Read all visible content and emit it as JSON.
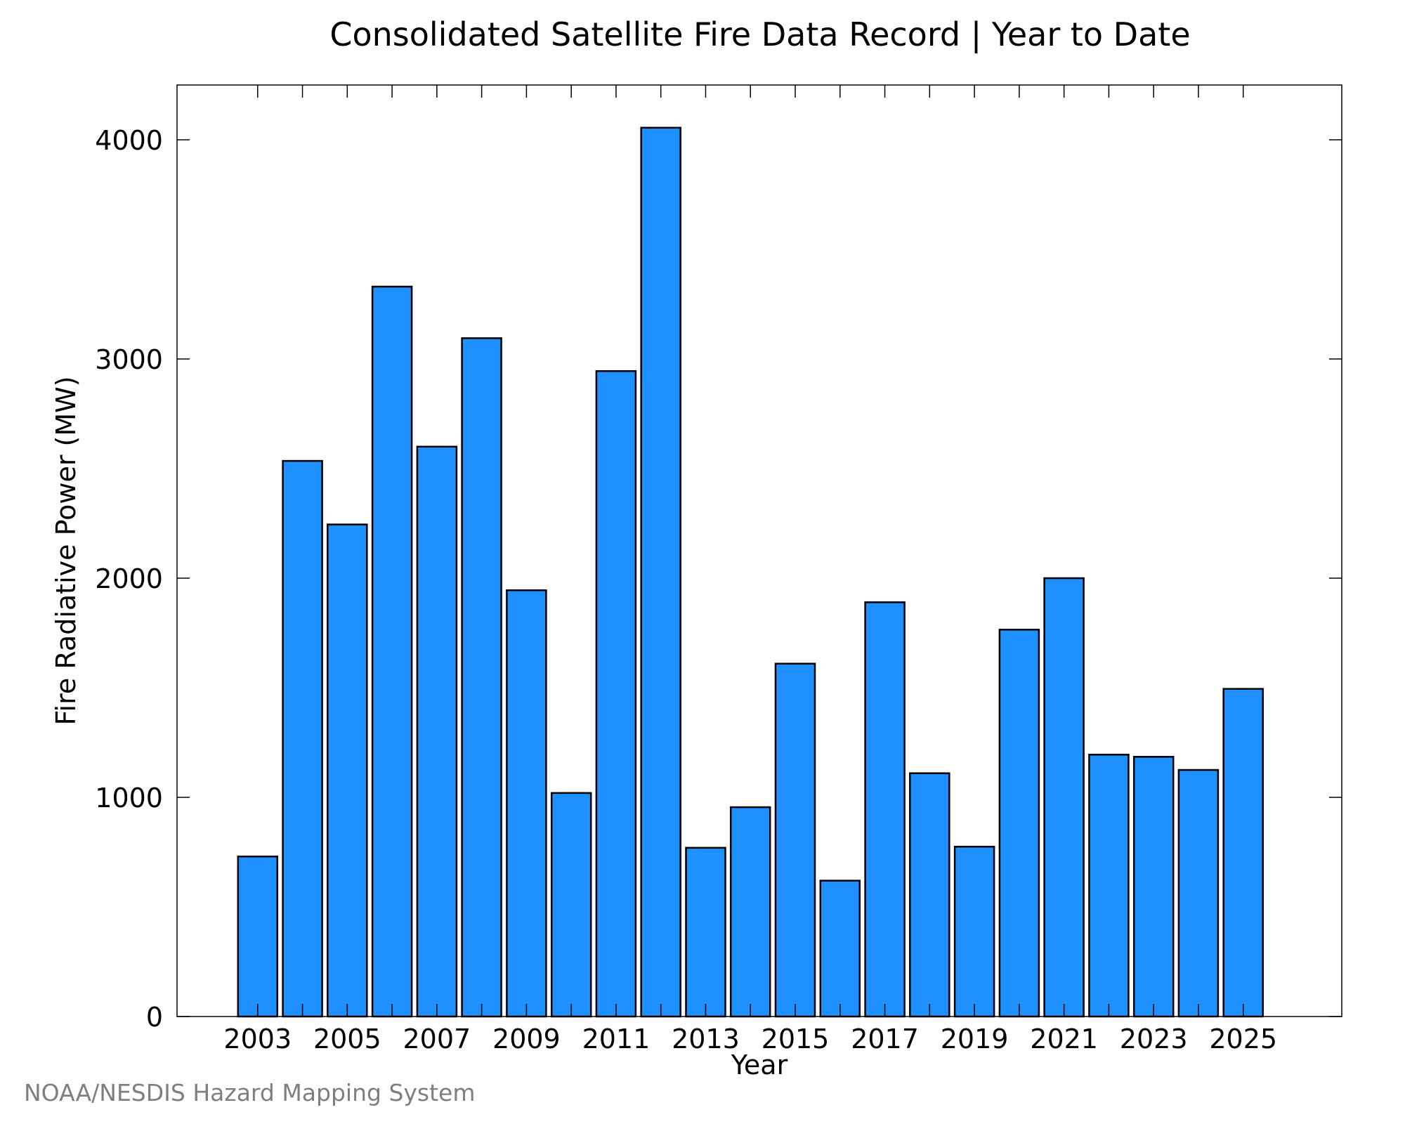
{
  "chart_data": {
    "type": "bar",
    "title": "Consolidated Satellite Fire Data Record | Year to Date",
    "xlabel": "Year",
    "ylabel": "Fire Radiative Power (MW)",
    "categories": [
      2003,
      2004,
      2005,
      2006,
      2007,
      2008,
      2009,
      2010,
      2011,
      2012,
      2013,
      2014,
      2015,
      2016,
      2017,
      2018,
      2019,
      2020,
      2021,
      2022,
      2023,
      2024,
      2025
    ],
    "values": [
      730,
      2535,
      2245,
      3330,
      2600,
      3095,
      1945,
      1020,
      2945,
      4055,
      770,
      955,
      1610,
      620,
      1890,
      1110,
      775,
      1765,
      2000,
      1195,
      1185,
      1125,
      1495
    ],
    "x_ticks": [
      "2003",
      "2005",
      "2007",
      "2009",
      "2011",
      "2013",
      "2015",
      "2017",
      "2019",
      "2021",
      "2023",
      "2025"
    ],
    "y_ticks": [
      "0",
      "1000",
      "2000",
      "3000",
      "4000"
    ],
    "ylim": [
      0,
      4250
    ],
    "bar_color": "#1e90ff",
    "bar_edge_color": "#000000",
    "grid": false,
    "legend": "none"
  },
  "credit": "NOAA/NESDIS Hazard Mapping System"
}
